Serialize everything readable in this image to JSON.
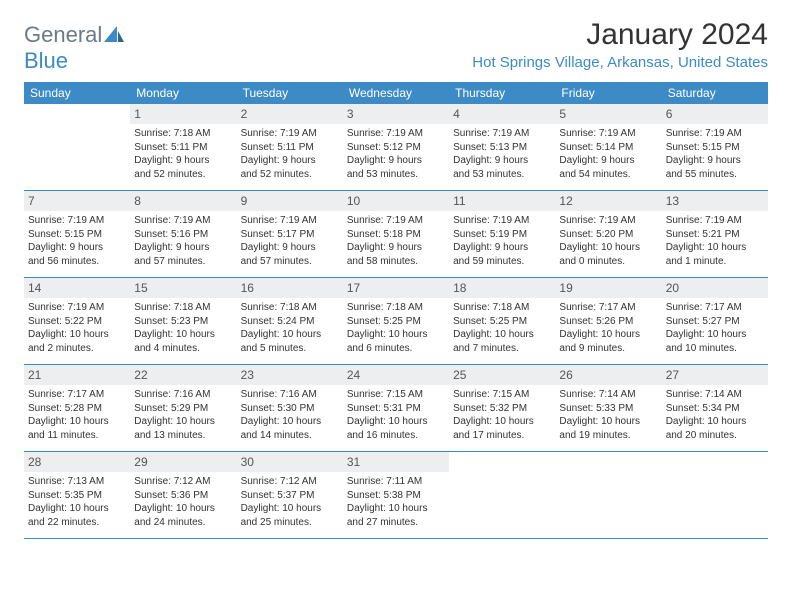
{
  "logo": {
    "text_gray": "General",
    "text_blue": "Blue"
  },
  "title": "January 2024",
  "subtitle": "Hot Springs Village, Arkansas, United States",
  "colors": {
    "header_bg": "#3d8bc6",
    "header_text": "#ffffff",
    "daynum_bg": "#eceeef",
    "rule": "#3d8bc6",
    "subtitle": "#3d8bc6",
    "body_text": "#333333",
    "logo_gray": "#6b7a85"
  },
  "day_names": [
    "Sunday",
    "Monday",
    "Tuesday",
    "Wednesday",
    "Thursday",
    "Friday",
    "Saturday"
  ],
  "weeks": [
    [
      null,
      {
        "n": "1",
        "sr": "7:18 AM",
        "ss": "5:11 PM",
        "dl1": "Daylight: 9 hours",
        "dl2": "and 52 minutes."
      },
      {
        "n": "2",
        "sr": "7:19 AM",
        "ss": "5:11 PM",
        "dl1": "Daylight: 9 hours",
        "dl2": "and 52 minutes."
      },
      {
        "n": "3",
        "sr": "7:19 AM",
        "ss": "5:12 PM",
        "dl1": "Daylight: 9 hours",
        "dl2": "and 53 minutes."
      },
      {
        "n": "4",
        "sr": "7:19 AM",
        "ss": "5:13 PM",
        "dl1": "Daylight: 9 hours",
        "dl2": "and 53 minutes."
      },
      {
        "n": "5",
        "sr": "7:19 AM",
        "ss": "5:14 PM",
        "dl1": "Daylight: 9 hours",
        "dl2": "and 54 minutes."
      },
      {
        "n": "6",
        "sr": "7:19 AM",
        "ss": "5:15 PM",
        "dl1": "Daylight: 9 hours",
        "dl2": "and 55 minutes."
      }
    ],
    [
      {
        "n": "7",
        "sr": "7:19 AM",
        "ss": "5:15 PM",
        "dl1": "Daylight: 9 hours",
        "dl2": "and 56 minutes."
      },
      {
        "n": "8",
        "sr": "7:19 AM",
        "ss": "5:16 PM",
        "dl1": "Daylight: 9 hours",
        "dl2": "and 57 minutes."
      },
      {
        "n": "9",
        "sr": "7:19 AM",
        "ss": "5:17 PM",
        "dl1": "Daylight: 9 hours",
        "dl2": "and 57 minutes."
      },
      {
        "n": "10",
        "sr": "7:19 AM",
        "ss": "5:18 PM",
        "dl1": "Daylight: 9 hours",
        "dl2": "and 58 minutes."
      },
      {
        "n": "11",
        "sr": "7:19 AM",
        "ss": "5:19 PM",
        "dl1": "Daylight: 9 hours",
        "dl2": "and 59 minutes."
      },
      {
        "n": "12",
        "sr": "7:19 AM",
        "ss": "5:20 PM",
        "dl1": "Daylight: 10 hours",
        "dl2": "and 0 minutes."
      },
      {
        "n": "13",
        "sr": "7:19 AM",
        "ss": "5:21 PM",
        "dl1": "Daylight: 10 hours",
        "dl2": "and 1 minute."
      }
    ],
    [
      {
        "n": "14",
        "sr": "7:19 AM",
        "ss": "5:22 PM",
        "dl1": "Daylight: 10 hours",
        "dl2": "and 2 minutes."
      },
      {
        "n": "15",
        "sr": "7:18 AM",
        "ss": "5:23 PM",
        "dl1": "Daylight: 10 hours",
        "dl2": "and 4 minutes."
      },
      {
        "n": "16",
        "sr": "7:18 AM",
        "ss": "5:24 PM",
        "dl1": "Daylight: 10 hours",
        "dl2": "and 5 minutes."
      },
      {
        "n": "17",
        "sr": "7:18 AM",
        "ss": "5:25 PM",
        "dl1": "Daylight: 10 hours",
        "dl2": "and 6 minutes."
      },
      {
        "n": "18",
        "sr": "7:18 AM",
        "ss": "5:25 PM",
        "dl1": "Daylight: 10 hours",
        "dl2": "and 7 minutes."
      },
      {
        "n": "19",
        "sr": "7:17 AM",
        "ss": "5:26 PM",
        "dl1": "Daylight: 10 hours",
        "dl2": "and 9 minutes."
      },
      {
        "n": "20",
        "sr": "7:17 AM",
        "ss": "5:27 PM",
        "dl1": "Daylight: 10 hours",
        "dl2": "and 10 minutes."
      }
    ],
    [
      {
        "n": "21",
        "sr": "7:17 AM",
        "ss": "5:28 PM",
        "dl1": "Daylight: 10 hours",
        "dl2": "and 11 minutes."
      },
      {
        "n": "22",
        "sr": "7:16 AM",
        "ss": "5:29 PM",
        "dl1": "Daylight: 10 hours",
        "dl2": "and 13 minutes."
      },
      {
        "n": "23",
        "sr": "7:16 AM",
        "ss": "5:30 PM",
        "dl1": "Daylight: 10 hours",
        "dl2": "and 14 minutes."
      },
      {
        "n": "24",
        "sr": "7:15 AM",
        "ss": "5:31 PM",
        "dl1": "Daylight: 10 hours",
        "dl2": "and 16 minutes."
      },
      {
        "n": "25",
        "sr": "7:15 AM",
        "ss": "5:32 PM",
        "dl1": "Daylight: 10 hours",
        "dl2": "and 17 minutes."
      },
      {
        "n": "26",
        "sr": "7:14 AM",
        "ss": "5:33 PM",
        "dl1": "Daylight: 10 hours",
        "dl2": "and 19 minutes."
      },
      {
        "n": "27",
        "sr": "7:14 AM",
        "ss": "5:34 PM",
        "dl1": "Daylight: 10 hours",
        "dl2": "and 20 minutes."
      }
    ],
    [
      {
        "n": "28",
        "sr": "7:13 AM",
        "ss": "5:35 PM",
        "dl1": "Daylight: 10 hours",
        "dl2": "and 22 minutes."
      },
      {
        "n": "29",
        "sr": "7:12 AM",
        "ss": "5:36 PM",
        "dl1": "Daylight: 10 hours",
        "dl2": "and 24 minutes."
      },
      {
        "n": "30",
        "sr": "7:12 AM",
        "ss": "5:37 PM",
        "dl1": "Daylight: 10 hours",
        "dl2": "and 25 minutes."
      },
      {
        "n": "31",
        "sr": "7:11 AM",
        "ss": "5:38 PM",
        "dl1": "Daylight: 10 hours",
        "dl2": "and 27 minutes."
      },
      null,
      null,
      null
    ]
  ],
  "labels": {
    "sunrise_prefix": "Sunrise: ",
    "sunset_prefix": "Sunset: "
  }
}
